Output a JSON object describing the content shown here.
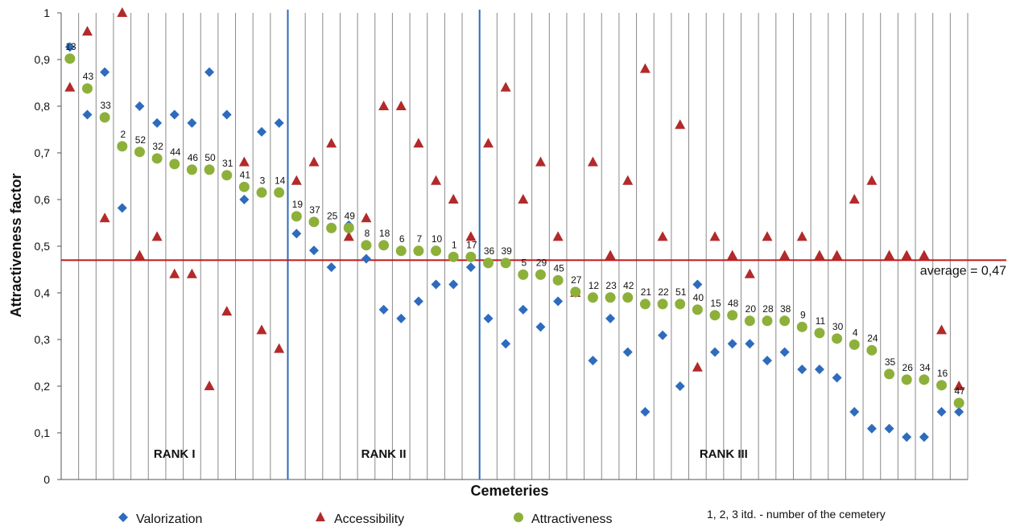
{
  "chart_data": {
    "type": "scatter",
    "ylabel": "Attractiveness factor",
    "xlabel": "Cemeteries",
    "ylim": [
      0,
      1
    ],
    "y_ticks": [
      "0",
      "0,1",
      "0,2",
      "0,3",
      "0,4",
      "0,5",
      "0,6",
      "0,7",
      "0,8",
      "0,9",
      "1"
    ],
    "grid": "vertical",
    "cemetery_labels": [
      "13",
      "43",
      "33",
      "2",
      "52",
      "32",
      "44",
      "46",
      "50",
      "31",
      "41",
      "3",
      "14",
      "19",
      "37",
      "25",
      "49",
      "8",
      "18",
      "6",
      "7",
      "10",
      "1",
      "17",
      "36",
      "39",
      "5",
      "29",
      "45",
      "27",
      "12",
      "23",
      "42",
      "21",
      "22",
      "51",
      "40",
      "15",
      "48",
      "20",
      "28",
      "38",
      "9",
      "11",
      "30",
      "4",
      "24",
      "35",
      "26",
      "34",
      "16",
      "47"
    ],
    "series": [
      {
        "name": "Valorization",
        "color": "#2E6BBD",
        "marker": "diamond",
        "values": [
          0.927,
          0.782,
          0.873,
          0.582,
          0.8,
          0.764,
          0.782,
          0.764,
          0.873,
          0.782,
          0.6,
          0.745,
          0.764,
          0.527,
          0.491,
          0.455,
          0.545,
          0.473,
          0.364,
          0.345,
          0.382,
          0.418,
          0.418,
          0.455,
          0.345,
          0.291,
          0.364,
          0.327,
          0.382,
          0.4,
          0.255,
          0.345,
          0.273,
          0.145,
          0.309,
          0.2,
          0.418,
          0.273,
          0.291,
          0.291,
          0.255,
          0.273,
          0.236,
          0.236,
          0.218,
          0.145,
          0.109,
          0.109,
          0.091,
          0.091,
          0.145,
          0.145
        ]
      },
      {
        "name": "Accessibility",
        "color": "#B22A2A",
        "marker": "triangle",
        "values": [
          0.84,
          0.96,
          0.56,
          1.0,
          0.48,
          0.52,
          0.44,
          0.44,
          0.2,
          0.36,
          0.68,
          0.32,
          0.28,
          0.64,
          0.68,
          0.72,
          0.52,
          0.56,
          0.8,
          0.8,
          0.72,
          0.64,
          0.6,
          0.52,
          0.72,
          0.84,
          0.6,
          0.68,
          0.52,
          0.4,
          0.68,
          0.48,
          0.64,
          0.88,
          0.52,
          0.76,
          0.24,
          0.52,
          0.48,
          0.44,
          0.52,
          0.48,
          0.52,
          0.48,
          0.48,
          0.6,
          0.64,
          0.48,
          0.48,
          0.48,
          0.32,
          0.2
        ]
      },
      {
        "name": "Attractiveness",
        "color": "#8DB03A",
        "marker": "circle",
        "values": [
          0.902,
          0.838,
          0.776,
          0.714,
          0.702,
          0.688,
          0.676,
          0.664,
          0.664,
          0.652,
          0.627,
          0.615,
          0.615,
          0.564,
          0.552,
          0.539,
          0.539,
          0.502,
          0.502,
          0.49,
          0.49,
          0.49,
          0.477,
          0.477,
          0.464,
          0.464,
          0.439,
          0.439,
          0.427,
          0.402,
          0.39,
          0.39,
          0.39,
          0.376,
          0.376,
          0.376,
          0.364,
          0.352,
          0.352,
          0.34,
          0.34,
          0.34,
          0.327,
          0.314,
          0.302,
          0.289,
          0.277,
          0.226,
          0.214,
          0.214,
          0.202,
          0.164
        ]
      }
    ],
    "average": {
      "value": 0.47,
      "label": "average = 0,47",
      "color": "#C0171A"
    },
    "ranks": [
      {
        "label": "RANK I"
      },
      {
        "label": "RANK II"
      },
      {
        "label": "RANK III"
      }
    ],
    "rank_boundaries_after_index": [
      12,
      23
    ],
    "boundary_color": "#2E6BBD",
    "legend": {
      "items": [
        "Valorization",
        "Accessibility",
        "Attractiveness"
      ],
      "note": "1, 2, 3 itd. - number of the cemetery",
      "placement": "bottom"
    }
  }
}
